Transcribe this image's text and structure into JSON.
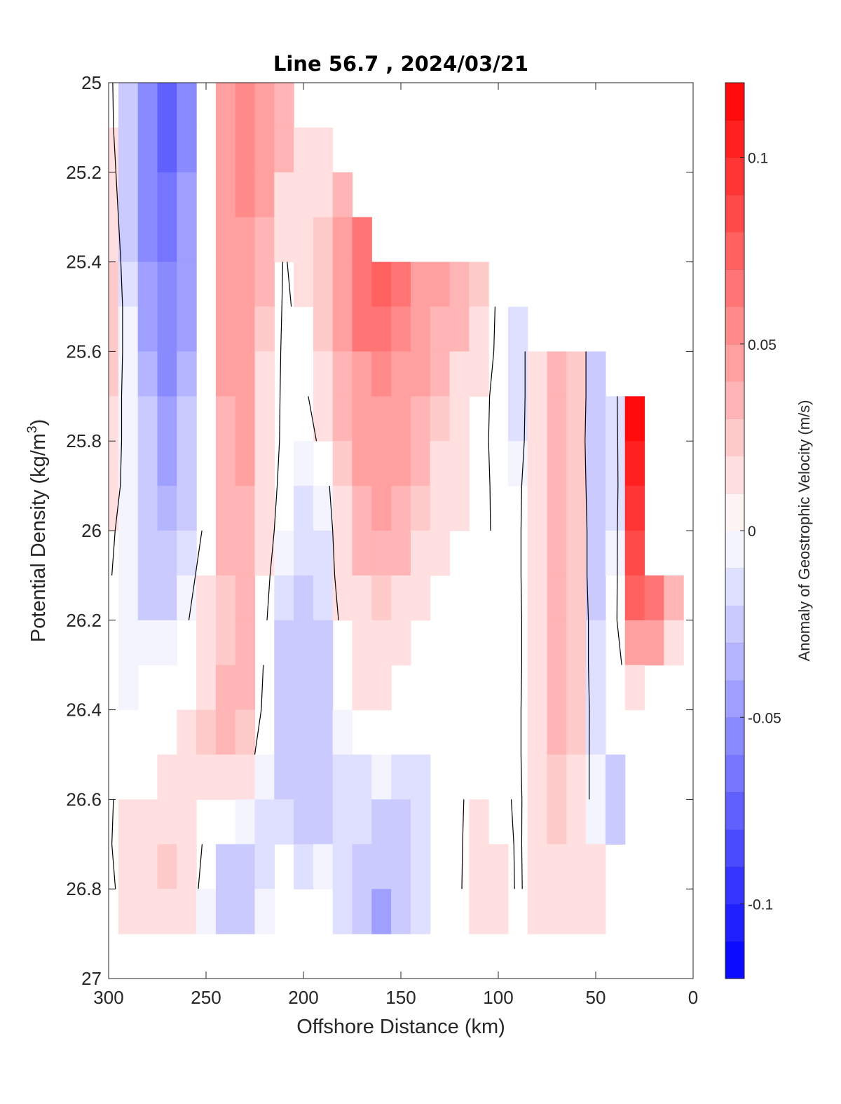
{
  "chart_data": {
    "type": "heatmap",
    "title": "Line 56.7 , 2024/03/21",
    "xlabel": "Offshore Distance (km)",
    "ylabel_text": "Potential Density (kg/m",
    "ylabel_sup": "3",
    "ylabel_close": ")",
    "colorbar_label": "Anomaly of Geostrophic Velocity (m/s)",
    "xlim": [
      300,
      0
    ],
    "ylim": [
      25,
      27
    ],
    "x_ticks": [
      "300",
      "250",
      "200",
      "150",
      "100",
      "50",
      "0"
    ],
    "y_ticks": [
      "25",
      "25.2",
      "25.4",
      "25.6",
      "25.8",
      "26",
      "26.2",
      "26.4",
      "26.6",
      "26.8",
      "27"
    ],
    "colorbar_range": [
      -0.12,
      0.12
    ],
    "colorbar_ticks": [
      "0.1",
      "0.05",
      "0",
      "-0.05",
      "-0.1"
    ],
    "colormap": [
      "#0000ff",
      "#ffffff",
      "#ff0000"
    ],
    "zero_contour_color": "#000000",
    "x": [
      300,
      290,
      280,
      270,
      260,
      250,
      240,
      230,
      220,
      210,
      200,
      190,
      180,
      170,
      160,
      150,
      140,
      130,
      120,
      110,
      100,
      90,
      80,
      70,
      60,
      50,
      40,
      30,
      20,
      10
    ],
    "y": [
      25.0,
      25.1,
      25.2,
      25.3,
      25.4,
      25.5,
      25.6,
      25.7,
      25.8,
      25.9,
      26.0,
      26.1,
      26.2,
      26.3,
      26.4,
      26.5,
      26.6,
      26.7,
      26.8,
      26.9
    ],
    "top_of_data": [
      25.0,
      25.0,
      25.0,
      25.0,
      25.0,
      25.0,
      25.0,
      25.0,
      25.0,
      25.0,
      25.1,
      25.1,
      25.2,
      25.3,
      25.4,
      25.4,
      25.4,
      25.4,
      25.4,
      25.4,
      25.5,
      25.5,
      25.6,
      25.6,
      25.6,
      25.6,
      25.7,
      25.7,
      26.1,
      26.1
    ],
    "bottom_of_data": [
      26.9,
      26.9,
      26.9,
      26.9,
      26.9,
      26.9,
      26.9,
      26.9,
      26.9,
      26.9,
      26.9,
      26.9,
      26.9,
      26.9,
      26.9,
      26.9,
      26.9,
      26.9,
      26.9,
      26.9,
      26.9,
      26.9,
      26.9,
      26.9,
      26.9,
      26.9,
      26.8,
      26.4,
      26.3,
      26.3
    ],
    "values": [
      [
        0.008,
        -0.03,
        -0.06,
        -0.07,
        -0.05,
        0.0,
        0.05,
        0.055,
        0.04,
        0.03,
        0.0,
        0.0,
        0.0,
        0.0,
        0.0,
        0.0,
        0.0,
        0.0,
        0.0,
        0.0,
        0.0,
        0.0,
        0.0,
        0.0,
        0.0,
        0.0,
        0.0,
        0.0,
        0.0,
        0.0
      ],
      [
        0.01,
        -0.03,
        -0.06,
        -0.07,
        -0.05,
        0.0,
        0.05,
        0.055,
        0.045,
        0.03,
        0.02,
        0.02,
        0.02,
        0.0,
        0.0,
        0.0,
        0.0,
        0.0,
        0.0,
        0.0,
        0.0,
        0.0,
        0.0,
        0.0,
        0.0,
        0.0,
        0.0,
        0.0,
        0.0,
        0.0
      ],
      [
        0.015,
        -0.025,
        -0.055,
        -0.065,
        -0.045,
        0.0,
        0.05,
        0.055,
        0.04,
        0.02,
        0.02,
        0.02,
        0.03,
        0.04,
        0.0,
        0.0,
        0.0,
        0.0,
        0.0,
        0.0,
        0.0,
        0.0,
        0.0,
        0.0,
        0.0,
        0.0,
        0.0,
        0.0,
        0.0,
        0.0
      ],
      [
        0.02,
        -0.02,
        -0.05,
        -0.065,
        -0.045,
        0.0,
        0.05,
        0.05,
        0.035,
        0.015,
        0.02,
        0.025,
        0.04,
        0.06,
        0.075,
        0.0,
        0.0,
        0.0,
        0.0,
        0.0,
        0.0,
        0.0,
        0.0,
        0.0,
        0.0,
        0.0,
        0.0,
        0.0,
        0.0,
        0.0
      ],
      [
        0.025,
        -0.015,
        -0.045,
        -0.06,
        -0.045,
        0.0,
        0.045,
        0.05,
        0.03,
        -0.002,
        0.01,
        0.025,
        0.045,
        0.065,
        0.07,
        0.06,
        0.045,
        0.04,
        0.035,
        0.025,
        0.0,
        0.0,
        0.0,
        0.0,
        0.0,
        0.0,
        0.0,
        0.0,
        0.0,
        0.0
      ],
      [
        0.025,
        -0.01,
        -0.04,
        -0.06,
        -0.04,
        0.0,
        0.04,
        0.045,
        0.025,
        -0.003,
        0.005,
        0.025,
        0.04,
        0.06,
        0.06,
        0.055,
        0.045,
        0.035,
        0.03,
        0.015,
        -0.003,
        -0.012,
        0.0,
        0.0,
        0.0,
        0.0,
        0.0,
        0.0,
        0.0,
        0.0
      ],
      [
        0.025,
        -0.01,
        -0.035,
        -0.055,
        -0.035,
        0.0,
        0.04,
        0.045,
        0.02,
        -0.004,
        0.0,
        0.02,
        0.035,
        0.05,
        0.055,
        0.05,
        0.04,
        0.03,
        0.02,
        0.01,
        -0.003,
        -0.012,
        0.02,
        0.03,
        0.025,
        -0.025,
        -0.02,
        0.0,
        0.0,
        0.0
      ],
      [
        0.02,
        -0.01,
        -0.03,
        -0.045,
        -0.03,
        0.0,
        0.035,
        0.04,
        0.02,
        -0.005,
        -0.005,
        0.015,
        0.03,
        0.045,
        0.05,
        0.045,
        0.035,
        0.025,
        0.015,
        0.005,
        -0.004,
        -0.012,
        0.02,
        0.03,
        0.025,
        -0.025,
        -0.015,
        0.13,
        0.0,
        0.0
      ],
      [
        0.02,
        -0.01,
        -0.03,
        -0.04,
        -0.025,
        0.0,
        0.035,
        0.04,
        0.02,
        -0.006,
        -0.01,
        0.005,
        0.025,
        0.04,
        0.045,
        0.04,
        0.03,
        0.02,
        0.012,
        0.004,
        -0.004,
        -0.01,
        0.02,
        0.03,
        0.025,
        -0.03,
        -0.015,
        0.1,
        0.0,
        0.0
      ],
      [
        0.015,
        -0.01,
        -0.025,
        -0.035,
        -0.02,
        0.0,
        0.03,
        0.035,
        0.015,
        -0.008,
        -0.015,
        -0.01,
        0.02,
        0.035,
        0.04,
        0.035,
        0.025,
        0.015,
        0.01,
        0.004,
        -0.003,
        -0.005,
        0.02,
        0.03,
        0.025,
        -0.025,
        -0.015,
        0.09,
        0.0,
        0.0
      ],
      [
        0.005,
        -0.01,
        -0.025,
        -0.03,
        -0.015,
        0.004,
        0.03,
        0.03,
        0.01,
        -0.01,
        -0.015,
        -0.015,
        0.015,
        0.03,
        0.035,
        0.03,
        0.02,
        0.01,
        0.005,
        0.003,
        -0.002,
        -0.004,
        0.02,
        0.03,
        0.025,
        -0.02,
        -0.01,
        0.08,
        0.0,
        0.0
      ],
      [
        0.002,
        -0.01,
        -0.02,
        -0.02,
        -0.01,
        0.012,
        0.025,
        0.03,
        0.006,
        -0.015,
        -0.02,
        -0.015,
        0.01,
        0.02,
        0.025,
        0.02,
        0.01,
        0.004,
        0.0,
        -0.002,
        -0.004,
        -0.004,
        0.02,
        0.03,
        0.025,
        -0.02,
        -0.008,
        0.07,
        0.06,
        0.03
      ],
      [
        -0.002,
        -0.01,
        -0.01,
        -0.01,
        -0.002,
        0.015,
        0.025,
        0.03,
        0.003,
        -0.02,
        -0.025,
        -0.02,
        0.005,
        0.015,
        0.015,
        0.012,
        0.005,
        0.0,
        -0.002,
        -0.003,
        -0.004,
        -0.005,
        0.02,
        0.03,
        0.025,
        -0.015,
        -0.005,
        0.05,
        0.045,
        0.02
      ],
      [
        -0.003,
        -0.01,
        -0.008,
        -0.005,
        0.006,
        0.02,
        0.03,
        0.03,
        -0.002,
        -0.02,
        -0.025,
        -0.02,
        0.0,
        0.012,
        0.01,
        0.005,
        0.0,
        -0.002,
        -0.003,
        -0.003,
        -0.004,
        -0.005,
        0.02,
        0.03,
        0.025,
        -0.015,
        -0.005,
        0.01,
        0.03,
        0.0
      ],
      [
        -0.003,
        -0.008,
        -0.002,
        0.004,
        0.012,
        0.025,
        0.03,
        0.025,
        -0.005,
        -0.02,
        -0.025,
        -0.025,
        -0.01,
        -0.002,
        -0.002,
        -0.002,
        -0.002,
        -0.003,
        -0.003,
        -0.003,
        -0.004,
        -0.004,
        0.02,
        0.03,
        0.025,
        -0.012,
        -0.004,
        0.0,
        0.0,
        0.0
      ],
      [
        -0.004,
        -0.003,
        0.005,
        0.012,
        0.018,
        0.02,
        0.02,
        0.01,
        -0.01,
        -0.02,
        -0.025,
        -0.025,
        -0.015,
        -0.012,
        -0.01,
        -0.012,
        -0.012,
        -0.004,
        -0.003,
        -0.003,
        -0.004,
        -0.004,
        0.02,
        0.025,
        0.02,
        -0.01,
        -0.02,
        0.0,
        0.0,
        0.0
      ],
      [
        -0.004,
        0.012,
        0.018,
        0.018,
        0.015,
        0.005,
        -0.005,
        -0.01,
        -0.015,
        -0.015,
        -0.025,
        -0.02,
        -0.012,
        -0.015,
        -0.02,
        -0.02,
        -0.012,
        -0.004,
        -0.003,
        0.01,
        0.008,
        -0.004,
        0.015,
        0.025,
        0.02,
        -0.01,
        -0.02,
        0.0,
        0.0,
        0.0
      ],
      [
        -0.003,
        0.015,
        0.02,
        0.025,
        0.02,
        -0.005,
        -0.02,
        -0.02,
        -0.015,
        -0.004,
        -0.015,
        -0.01,
        -0.012,
        -0.025,
        -0.03,
        -0.025,
        -0.012,
        -0.003,
        -0.003,
        0.015,
        0.012,
        -0.003,
        0.012,
        0.02,
        0.02,
        0.01,
        -0.005,
        0.0,
        0.0,
        0.0
      ],
      [
        -0.008,
        0.015,
        0.02,
        0.02,
        0.015,
        -0.01,
        -0.03,
        -0.025,
        -0.01,
        -0.003,
        -0.005,
        -0.003,
        -0.015,
        -0.03,
        -0.04,
        -0.03,
        -0.012,
        -0.003,
        -0.003,
        0.02,
        0.015,
        -0.003,
        0.01,
        0.015,
        0.02,
        0.015,
        0.005,
        0.0,
        0.0,
        0.0
      ],
      [
        -0.008,
        0.015,
        0.02,
        0.02,
        0.015,
        -0.01,
        -0.03,
        -0.025,
        -0.01,
        -0.003,
        -0.005,
        -0.003,
        -0.015,
        -0.03,
        -0.04,
        -0.03,
        -0.012,
        -0.003,
        -0.003,
        0.02,
        0.015,
        -0.003,
        0.01,
        0.015,
        0.02,
        0.015,
        0.005,
        0.0,
        0.0,
        0.0
      ]
    ]
  }
}
